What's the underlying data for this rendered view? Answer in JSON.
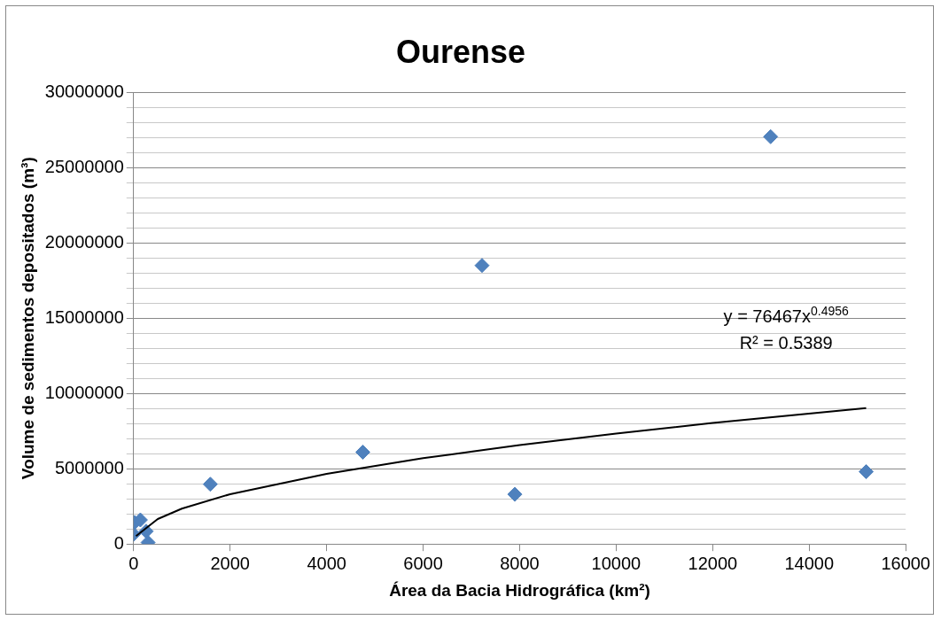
{
  "chart_data": {
    "type": "scatter",
    "title": "Ourense",
    "xlabel": "Área da Bacia Hidrográfica (km²)",
    "ylabel": "Volume de sedimentos depositados (m³)",
    "x": [
      20,
      140,
      0,
      260,
      300,
      1590,
      4750,
      7220,
      7900,
      13200,
      15180
    ],
    "series": [
      {
        "color": "#4f81bd",
        "values": [
          1430000,
          1600000,
          650000,
          850000,
          100000,
          3970000,
          6100000,
          18500000,
          3300000,
          27050000,
          4800000
        ],
        "marker": "diamond"
      },
      {
        "type": "line",
        "color": "#000000",
        "x": [
          50,
          500,
          1000,
          2000,
          4000,
          6000,
          8000,
          10000,
          12000,
          15180
        ],
        "values": [
          530000,
          1660000,
          2350000,
          3310000,
          4660000,
          5700000,
          6570000,
          7340000,
          8040000,
          9030000
        ],
        "marker": "none"
      }
    ],
    "annotations": [
      "y = 76467x$^{0.4956}$",
      "R² = 0.5389"
    ],
    "xlim": [
      0,
      16000
    ],
    "xticks": [
      0,
      2000,
      4000,
      6000,
      8000,
      10000,
      12000,
      14000,
      16000
    ],
    "ylim": [
      0,
      30000000
    ],
    "yticks": [
      0,
      {
        "value": 1000000,
        "label": null
      },
      {
        "value": 2000000,
        "label": null
      },
      {
        "value": 3000000,
        "label": null
      },
      {
        "value": 4000000,
        "label": null
      },
      5000000,
      {
        "value": 6000000,
        "label": null
      },
      {
        "value": 7000000,
        "label": null
      },
      {
        "value": 8000000,
        "label": null
      },
      {
        "value": 9000000,
        "label": null
      },
      10000000,
      {
        "value": 11000000,
        "label": null
      },
      {
        "value": 12000000,
        "label": null
      },
      {
        "value": 13000000,
        "label": null
      },
      {
        "value": 14000000,
        "label": null
      },
      15000000,
      {
        "value": 16000000,
        "label": null
      },
      {
        "value": 17000000,
        "label": null
      },
      {
        "value": 18000000,
        "label": null
      },
      {
        "value": 19000000,
        "label": null
      },
      20000000,
      {
        "value": 21000000,
        "label": null
      },
      {
        "value": 22000000,
        "label": null
      },
      {
        "value": 23000000,
        "label": null
      },
      {
        "value": 24000000,
        "label": null
      },
      25000000,
      {
        "value": 26000000,
        "label": null
      },
      {
        "value": 27000000,
        "label": null
      },
      {
        "value": 28000000,
        "label": null
      },
      {
        "value": 29000000,
        "label": null
      },
      30000000
    ],
    "grid": "y",
    "legend": false
  }
}
